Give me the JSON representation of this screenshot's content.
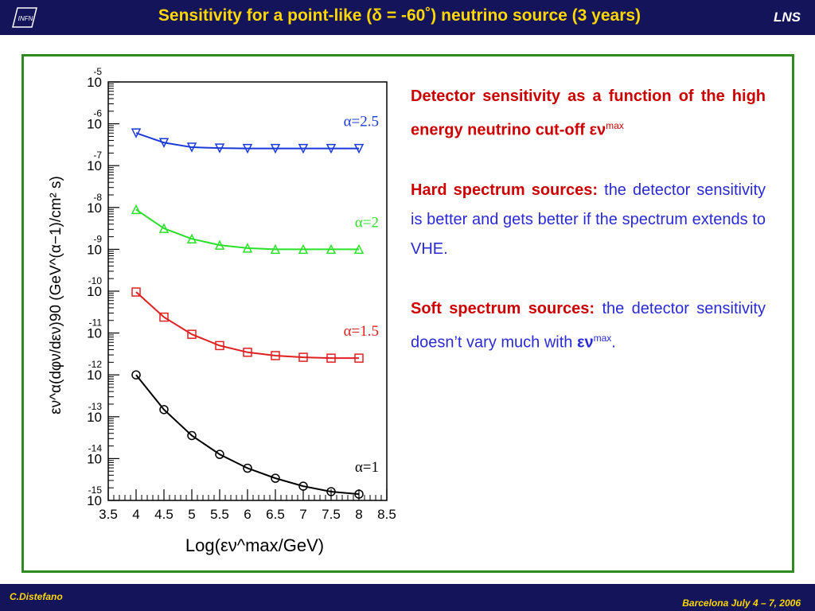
{
  "header": {
    "logo_text": "INFN",
    "title": "Sensitivity for a point-like (δ = -60˚) neutrino source (3 years)",
    "right_label": "LNS"
  },
  "text": {
    "p1_main": "Detector sensitivity as a function of the high energy neutrino cut-off ",
    "p1_sym": "εν",
    "p1_sup": "max",
    "p2_head": "Hard spectrum sources:",
    "p2_body": " the detector sensitivity is better and gets better if the spectrum extends to VHE.",
    "p3_head": "Soft spectrum sources:",
    "p3_body": " the detector sensitivity doesn’t vary much with ",
    "p3_sym": "εν",
    "p3_sup": "max",
    "p3_end": "."
  },
  "footer": {
    "left": "C.Distefano",
    "right": "Barcelona July 4 – 7, 2006"
  },
  "colors": {
    "header_bg": "#14145a",
    "title": "#ffd700",
    "frame": "#2e8b1e",
    "text_blue": "#2a2ad4",
    "text_red": "#cc0000"
  },
  "chart_data": {
    "type": "line",
    "title": "",
    "xlabel": "Log(εν^max/GeV)",
    "ylabel": "εν^α(dφν/dεν)90 (GeV^(α−1)/cm² s)",
    "xlim": [
      3.5,
      8.5
    ],
    "ylim_log10": [
      -15,
      -5
    ],
    "y_scale": "log",
    "x_ticks": [
      "3.5",
      "4",
      "4.5",
      "5",
      "5.5",
      "6",
      "6.5",
      "7",
      "7.5",
      "8",
      "8.5"
    ],
    "y_tick_exponents": [
      "-5",
      "-6",
      "-7",
      "-8",
      "-9",
      "-10",
      "-11",
      "-12",
      "-13",
      "-14",
      "-15"
    ],
    "y_tick_base": "10",
    "x": [
      4,
      4.5,
      5,
      5.5,
      6,
      6.5,
      7,
      7.5,
      8
    ],
    "series": [
      {
        "name": "α=2.5",
        "color": "#1a3ad8",
        "marker": "triangle-down",
        "log10_values": [
          -6.22,
          -6.45,
          -6.56,
          -6.58,
          -6.59,
          -6.59,
          -6.59,
          -6.59,
          -6.59
        ]
      },
      {
        "name": "α=2",
        "color": "#2ae02a",
        "marker": "triangle-up",
        "log10_values": [
          -8.05,
          -8.5,
          -8.75,
          -8.9,
          -8.97,
          -9.0,
          -9.0,
          -9.0,
          -9.0
        ]
      },
      {
        "name": "α=1.5",
        "color": "#e02020",
        "marker": "square",
        "log10_values": [
          -10.02,
          -10.62,
          -11.03,
          -11.3,
          -11.46,
          -11.54,
          -11.58,
          -11.6,
          -11.6
        ]
      },
      {
        "name": "α=1",
        "color": "#000000",
        "marker": "circle",
        "log10_values": [
          -12.0,
          -12.83,
          -13.45,
          -13.9,
          -14.23,
          -14.47,
          -14.66,
          -14.79,
          -14.85
        ]
      }
    ]
  }
}
